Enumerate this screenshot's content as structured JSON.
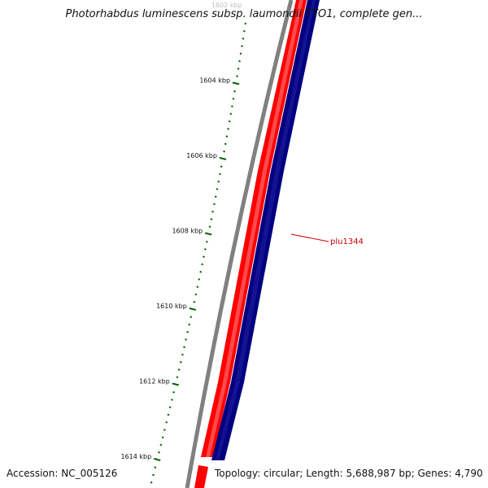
{
  "title": "Photorhabdus luminescens subsp. laumondii TTO1, complete gen...",
  "footer": {
    "accession": "Accession: NC_005126",
    "topology": "Topology: circular; Length: 5,688,987 bp; Genes: 4,790"
  },
  "scale": {
    "major_ticks": [
      {
        "label": "1602 kbp",
        "faded": true
      },
      {
        "label": "1604 kbp"
      },
      {
        "label": "1606 kbp"
      },
      {
        "label": "1608 kbp"
      },
      {
        "label": "1610 kbp"
      },
      {
        "label": "1612 kbp"
      },
      {
        "label": "1614 kbp"
      }
    ]
  },
  "feature": {
    "label": "plu1344",
    "color": "#cc0000"
  },
  "colors": {
    "backbone": "#808080",
    "forward_strand": "#ff0000",
    "reverse_strand": "#000080",
    "ticks": "#006400"
  }
}
